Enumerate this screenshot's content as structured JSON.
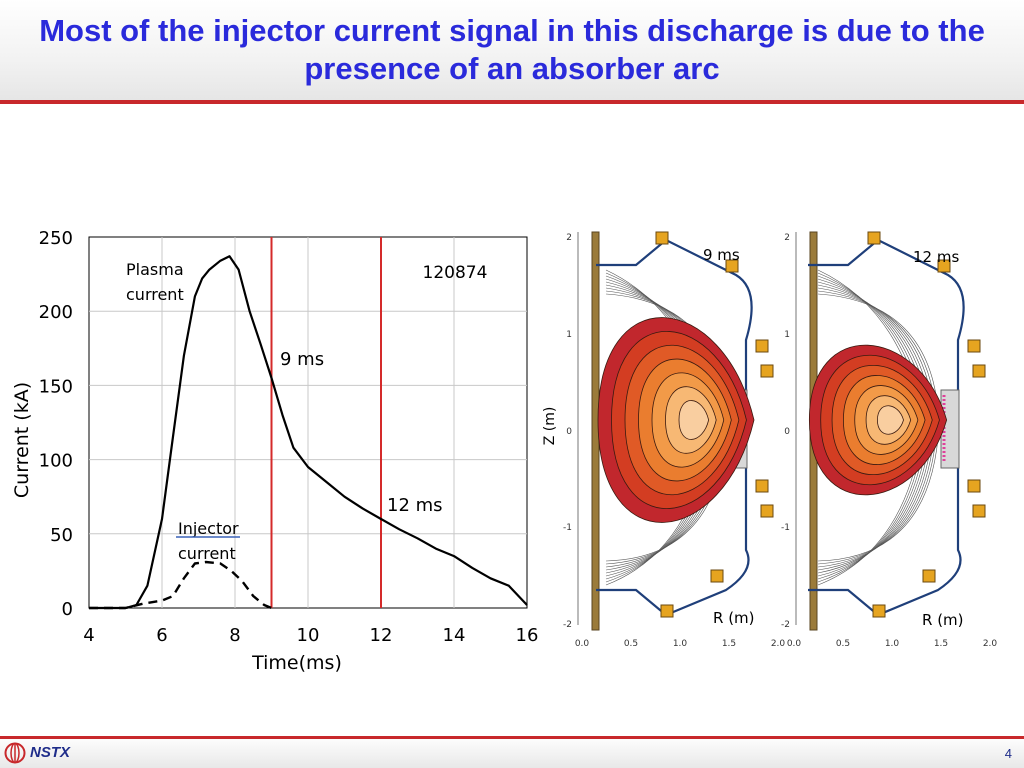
{
  "slide": {
    "title": "Most of the injector current signal in this discharge is due to the presence of an absorber arc",
    "footer_logo_text": "NSTX",
    "page_number": "4",
    "accent_color": "#c8282b",
    "title_color": "#2a2adb"
  },
  "chart_data": [
    {
      "type": "line",
      "xlabel": "Time(ms)",
      "ylabel": "Current (kA)",
      "xlim": [
        4,
        16
      ],
      "ylim": [
        0,
        250
      ],
      "x_ticks": [
        "4",
        "6",
        "8",
        "10",
        "12",
        "14",
        "16"
      ],
      "y_ticks": [
        "0",
        "50",
        "100",
        "150",
        "200",
        "250"
      ],
      "shot_number": "120874",
      "series": [
        {
          "name_lines": [
            "Plasma",
            "current"
          ],
          "style": "solid",
          "x": [
            4.0,
            4.5,
            5.0,
            5.3,
            5.6,
            6.0,
            6.3,
            6.6,
            6.9,
            7.1,
            7.3,
            7.6,
            7.85,
            8.1,
            8.4,
            8.7,
            9.0,
            9.3,
            9.6,
            10.0,
            10.5,
            11.0,
            11.5,
            12.0,
            12.5,
            13.0,
            13.5,
            14.0,
            14.5,
            15.0,
            15.5,
            16.0
          ],
          "y": [
            0,
            0,
            0,
            2,
            15,
            60,
            115,
            170,
            210,
            222,
            228,
            234,
            237,
            228,
            200,
            178,
            155,
            130,
            108,
            95,
            85,
            75,
            67,
            60,
            53,
            47,
            40,
            35,
            27,
            20,
            15,
            2
          ]
        },
        {
          "name_lines": [
            "Injector",
            "current"
          ],
          "style": "dashed",
          "x": [
            4.0,
            4.5,
            5.0,
            5.5,
            6.0,
            6.3,
            6.6,
            6.9,
            7.2,
            7.6,
            7.9,
            8.2,
            8.5,
            8.8,
            9.0
          ],
          "y": [
            0,
            0,
            0,
            3,
            5,
            8,
            20,
            30,
            31,
            30,
            25,
            18,
            8,
            2,
            0
          ]
        }
      ],
      "markers": [
        {
          "x": 9,
          "label": "9 ms"
        },
        {
          "x": 12,
          "label": "12 ms"
        }
      ]
    },
    {
      "type": "diagram",
      "panels": [
        {
          "time_label": "9 ms",
          "xlabel": "R (m)",
          "ylabel": "Z (m)",
          "x_ticks": [
            "0.0",
            "0.5",
            "1.0",
            "1.5",
            "2.0"
          ],
          "y_ticks": [
            "-2",
            "-1",
            "0",
            "1",
            "2"
          ]
        },
        {
          "time_label": "12 ms",
          "xlabel": "R (m)",
          "ylabel": "",
          "x_ticks": [
            "0.0",
            "0.5",
            "1.0",
            "1.5",
            "2.0"
          ],
          "y_ticks": [
            "-2",
            "-1",
            "0",
            "1",
            "2"
          ]
        }
      ],
      "contour_colors": [
        "#c1272d",
        "#d33d22",
        "#e05a26",
        "#ea7d2f",
        "#f29a48",
        "#f7b874",
        "#f9cea0"
      ]
    }
  ]
}
